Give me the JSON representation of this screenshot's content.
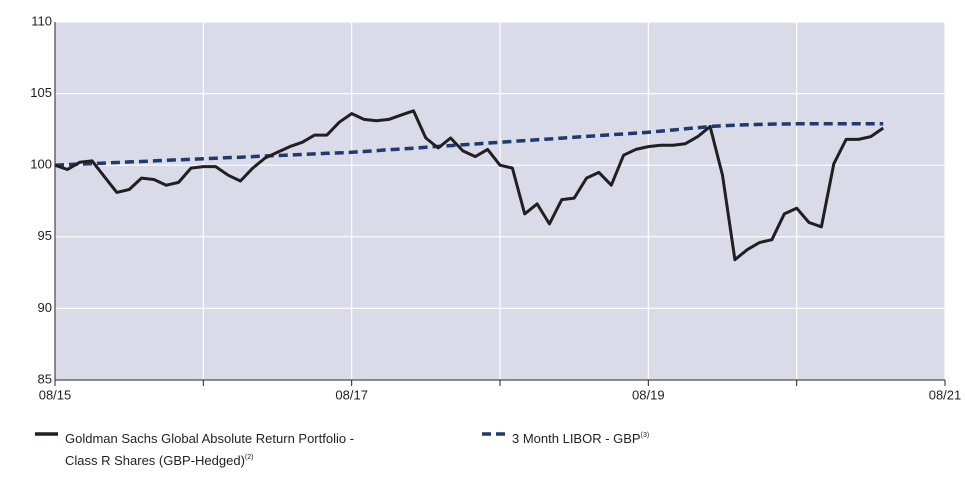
{
  "chart_data": {
    "type": "line",
    "categories": [
      "08/15",
      "09/15",
      "10/15",
      "11/15",
      "12/15",
      "01/16",
      "02/16",
      "03/16",
      "04/16",
      "05/16",
      "06/16",
      "07/16",
      "08/16",
      "09/16",
      "10/16",
      "11/16",
      "12/16",
      "01/17",
      "02/17",
      "03/17",
      "04/17",
      "05/17",
      "06/17",
      "07/17",
      "08/17",
      "09/17",
      "10/17",
      "11/17",
      "12/17",
      "01/18",
      "02/18",
      "03/18",
      "04/18",
      "05/18",
      "06/18",
      "07/18",
      "08/18",
      "09/18",
      "10/18",
      "11/18",
      "12/18",
      "01/19",
      "02/19",
      "03/19",
      "04/19",
      "05/19",
      "06/19",
      "07/19",
      "08/19",
      "09/19",
      "10/19",
      "11/19",
      "12/19",
      "01/20",
      "02/20",
      "03/20",
      "04/20",
      "05/20",
      "06/20",
      "07/20",
      "08/20",
      "09/20",
      "10/20",
      "11/20",
      "12/20",
      "01/21",
      "02/21",
      "03/21"
    ],
    "series": [
      {
        "name": "Goldman Sachs Global Absolute Return Portfolio - Class R Shares (GBP-Hedged)",
        "name_lines": [
          "Goldman Sachs Global Absolute Return Portfolio -",
          "Class R Shares (GBP-Hedged)"
        ],
        "footnote": "(2)",
        "color": "#231f20",
        "dashed": false,
        "values": [
          100.0,
          99.7,
          100.2,
          100.3,
          99.2,
          98.1,
          98.3,
          99.1,
          99.0,
          98.6,
          98.8,
          99.8,
          99.9,
          99.9,
          99.3,
          98.9,
          99.8,
          100.5,
          100.9,
          101.3,
          101.6,
          102.1,
          102.1,
          103.0,
          103.6,
          103.2,
          103.1,
          103.2,
          103.5,
          103.8,
          101.9,
          101.2,
          101.9,
          101.0,
          100.6,
          101.1,
          100.0,
          99.8,
          96.6,
          97.3,
          95.9,
          97.6,
          97.7,
          99.1,
          99.5,
          98.6,
          100.7,
          101.1,
          101.3,
          101.4,
          101.4,
          101.5,
          102.0,
          102.7,
          99.3,
          93.4,
          94.1,
          94.6,
          94.8,
          96.6,
          97.0,
          96.0,
          95.7,
          100.1,
          101.8,
          101.8,
          102.0,
          102.6
        ]
      },
      {
        "name": "3 Month LIBOR - GBP",
        "name_lines": [
          "3 Month LIBOR - GBP"
        ],
        "footnote": "(3)",
        "color": "#1f3a6e",
        "dashed": true,
        "values": [
          100.0,
          100.04,
          100.08,
          100.11,
          100.15,
          100.19,
          100.23,
          100.26,
          100.3,
          100.34,
          100.38,
          100.41,
          100.45,
          100.49,
          100.53,
          100.56,
          100.6,
          100.64,
          100.68,
          100.71,
          100.75,
          100.79,
          100.83,
          100.86,
          100.9,
          100.96,
          101.02,
          101.08,
          101.13,
          101.19,
          101.25,
          101.31,
          101.37,
          101.43,
          101.48,
          101.54,
          101.6,
          101.66,
          101.72,
          101.78,
          101.83,
          101.89,
          101.95,
          102.01,
          102.07,
          102.13,
          102.18,
          102.24,
          102.3,
          102.38,
          102.46,
          102.54,
          102.62,
          102.7,
          102.75,
          102.79,
          102.82,
          102.85,
          102.87,
          102.88,
          102.89,
          102.9,
          102.9,
          102.9,
          102.9,
          102.9,
          102.9,
          102.9
        ]
      }
    ],
    "xlim": [
      "08/15",
      "08/21"
    ],
    "xticks": [
      {
        "value": "08/15",
        "label": "08/15"
      },
      {
        "value": "08/16",
        "label": null
      },
      {
        "value": "08/17",
        "label": "08/17"
      },
      {
        "value": "08/18",
        "label": null
      },
      {
        "value": "08/19",
        "label": "08/19"
      },
      {
        "value": "08/20",
        "label": null
      },
      {
        "value": "08/21",
        "label": "08/21"
      }
    ],
    "ylim": [
      85,
      110
    ],
    "yticks": [
      85,
      90,
      95,
      100,
      105,
      110
    ],
    "grid": true
  }
}
